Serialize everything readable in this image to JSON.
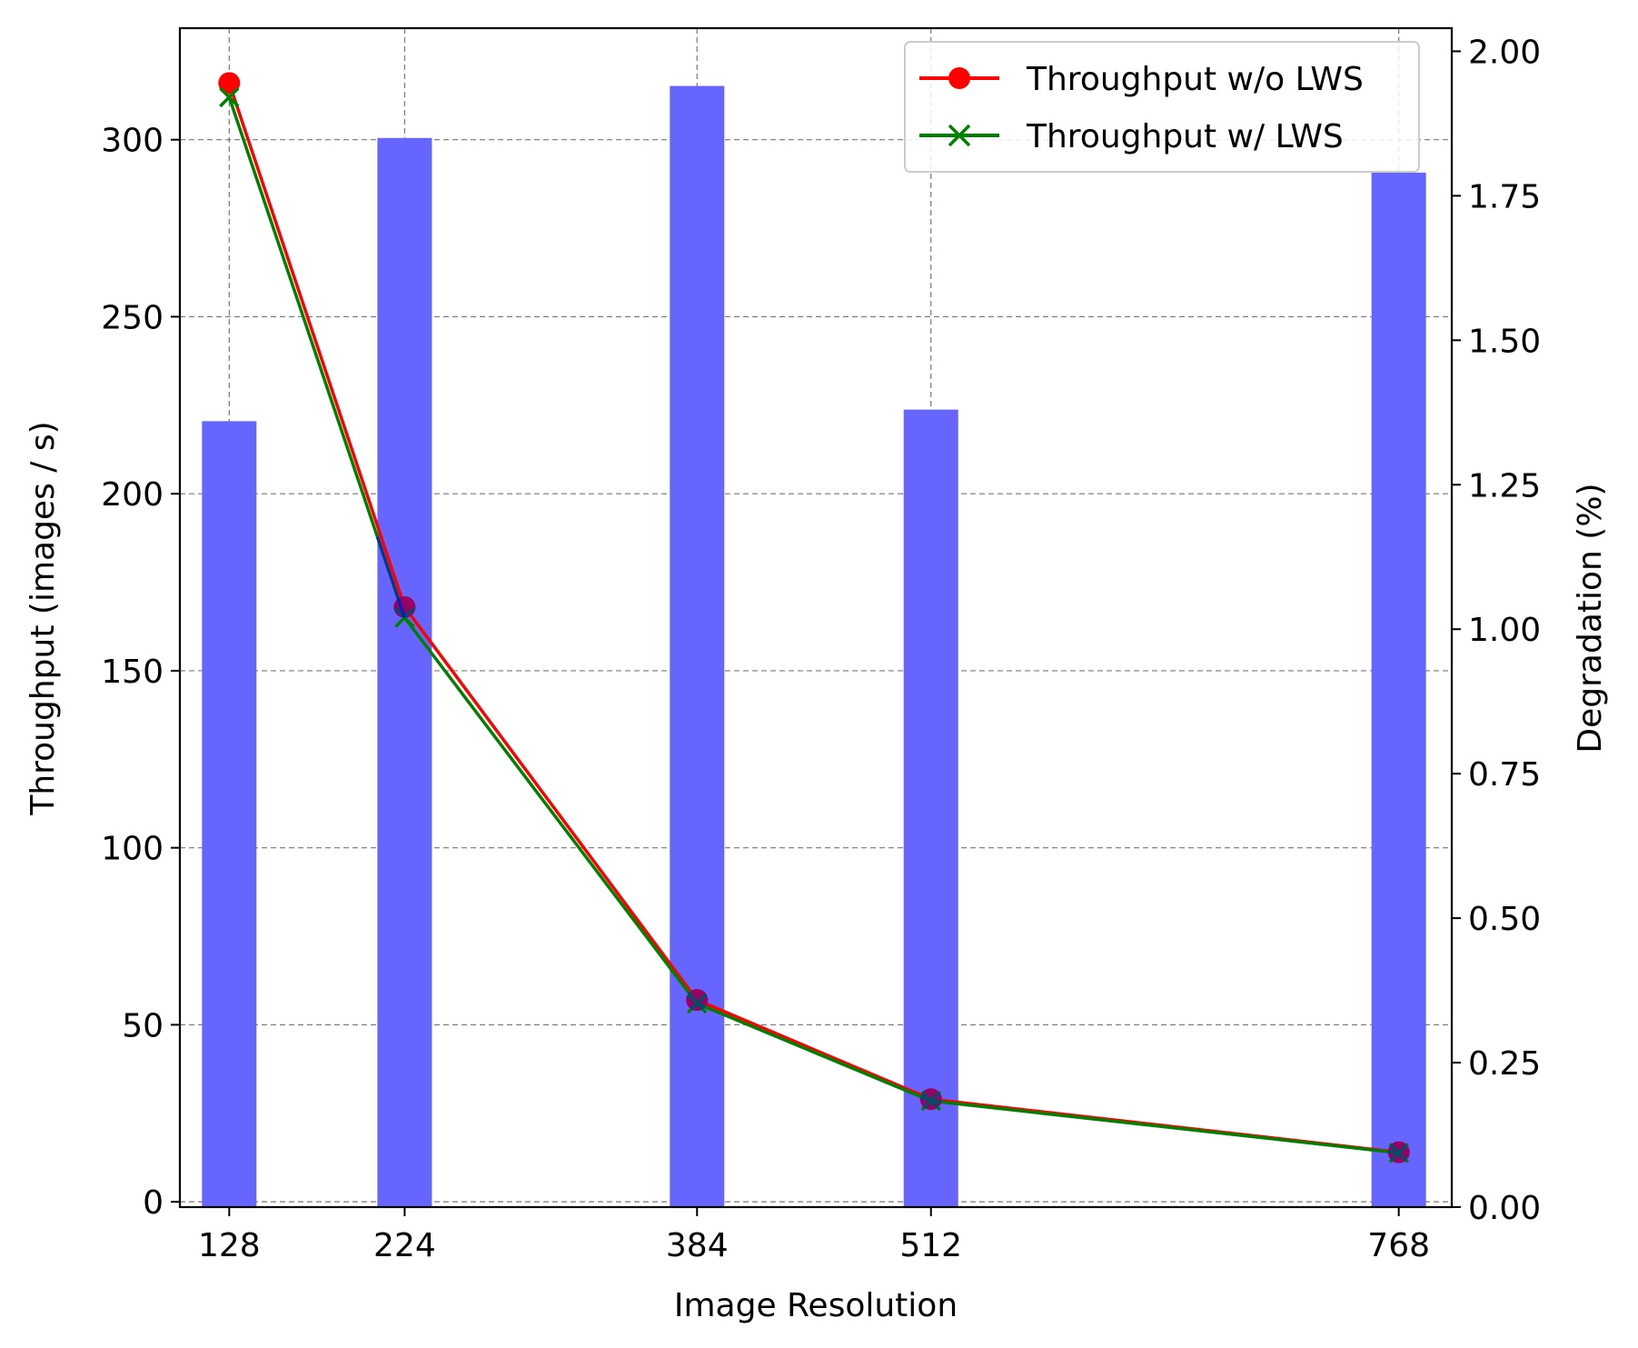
{
  "chart_data": {
    "type": "bar+line",
    "title": "",
    "xlabel": "Image Resolution",
    "ylabel_left": "Throughput (images / s)",
    "ylabel_right": "Degradation (%)",
    "x": [
      128,
      224,
      384,
      512,
      768
    ],
    "x_tick_labels": [
      "128",
      "224",
      "384",
      "512",
      "768"
    ],
    "xlim": [
      101,
      797
    ],
    "ylim_left": [
      -1.5,
      331.5
    ],
    "ylim_right": [
      0,
      2.04
    ],
    "y_ticks_left": [
      "0",
      "50",
      "100",
      "150",
      "200",
      "250",
      "300"
    ],
    "y_ticks_right": [
      "0.00",
      "0.25",
      "0.50",
      "0.75",
      "1.00",
      "1.25",
      "1.50",
      "1.75",
      "2.00"
    ],
    "bars": {
      "name": "Degradation",
      "axis": "right",
      "values": [
        1.36,
        1.85,
        1.94,
        1.38,
        1.79
      ],
      "color": "#6666ff"
    },
    "series": [
      {
        "name": "Throughput w/o LWS",
        "axis": "left",
        "marker": "circle",
        "color": "#ff0000",
        "values": [
          316,
          168,
          57,
          29,
          14
        ]
      },
      {
        "name": "Throughput w/ LWS",
        "axis": "left",
        "marker": "x",
        "color": "#008000",
        "values": [
          312,
          165,
          56,
          28.5,
          13.8
        ]
      }
    ],
    "overlay_color": "#0000ff",
    "grid": true,
    "legend_position": "top-right"
  }
}
